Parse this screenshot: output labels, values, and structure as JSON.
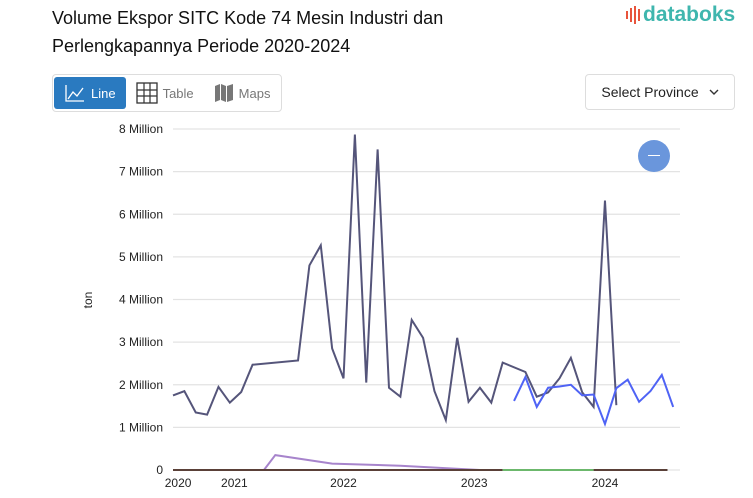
{
  "title": "Volume Ekspor SITC Kode 74 Mesin Industri dan Perlengkapannya Periode 2020-2024",
  "logo": "databoks",
  "tabs": [
    {
      "label": "Line",
      "icon": "line-chart-icon",
      "active": true
    },
    {
      "label": "Table",
      "icon": "table-icon",
      "active": false
    },
    {
      "label": "Maps",
      "icon": "map-icon",
      "active": false
    }
  ],
  "province_select": {
    "label": "Select Province",
    "icon": "chevron-down-icon"
  },
  "zoom_button": {
    "icon": "minus-icon",
    "color": "#6a96dc"
  },
  "chart_data": {
    "type": "line",
    "ylabel": "ton",
    "ylim": [
      0,
      8000000
    ],
    "yticks": [
      {
        "v": 0,
        "label": "0"
      },
      {
        "v": 1000000,
        "label": "1 Million"
      },
      {
        "v": 2000000,
        "label": "2 Million"
      },
      {
        "v": 3000000,
        "label": "3 Million"
      },
      {
        "v": 4000000,
        "label": "4 Million"
      },
      {
        "v": 5000000,
        "label": "5 Million"
      },
      {
        "v": 6000000,
        "label": "6 Million"
      },
      {
        "v": 7000000,
        "label": "7 Million"
      },
      {
        "v": 8000000,
        "label": "8 Million"
      }
    ],
    "xlim": [
      0,
      44.6
    ],
    "xticks": [
      {
        "v": 0.45,
        "label": "2020"
      },
      {
        "v": 5.4,
        "label": "2021"
      },
      {
        "v": 15,
        "label": "2022"
      },
      {
        "v": 26.5,
        "label": "2023"
      },
      {
        "v": 38,
        "label": "2024"
      }
    ],
    "grid": true,
    "series": [
      {
        "color": "#55557a",
        "points": [
          [
            0,
            1750000
          ],
          [
            1,
            1850000
          ],
          [
            2,
            1350000
          ],
          [
            3,
            1300000
          ],
          [
            4,
            1950000
          ],
          [
            5,
            1580000
          ],
          [
            6,
            1830000
          ],
          [
            7,
            2470000
          ],
          [
            11,
            2570000
          ],
          [
            12,
            4800000
          ],
          [
            13,
            5270000
          ],
          [
            14,
            2850000
          ],
          [
            15,
            2150000
          ],
          [
            16,
            7870000
          ],
          [
            17,
            2050000
          ],
          [
            18,
            7520000
          ],
          [
            19,
            1930000
          ],
          [
            20,
            1720000
          ],
          [
            21,
            3520000
          ],
          [
            22,
            3100000
          ],
          [
            23,
            1850000
          ],
          [
            24,
            1170000
          ],
          [
            25,
            3100000
          ],
          [
            26,
            1600000
          ],
          [
            27,
            1930000
          ],
          [
            28,
            1580000
          ],
          [
            29,
            2520000
          ],
          [
            31,
            2300000
          ],
          [
            32,
            1720000
          ],
          [
            33,
            1820000
          ],
          [
            34,
            2150000
          ],
          [
            35,
            2630000
          ],
          [
            36,
            1820000
          ],
          [
            37,
            1480000
          ],
          [
            38,
            6320000
          ],
          [
            39,
            1520000
          ]
        ]
      },
      {
        "color": "#4f63f5",
        "points": [
          [
            30,
            1620000
          ],
          [
            31,
            2180000
          ],
          [
            32,
            1480000
          ],
          [
            33,
            1930000
          ],
          [
            34,
            1960000
          ],
          [
            35,
            2000000
          ],
          [
            36,
            1750000
          ],
          [
            37,
            1770000
          ],
          [
            38,
            1080000
          ],
          [
            39,
            1920000
          ],
          [
            40,
            2120000
          ],
          [
            41,
            1600000
          ],
          [
            42,
            1850000
          ],
          [
            43,
            2230000
          ],
          [
            44,
            1480000
          ]
        ]
      },
      {
        "color": "#a784cc",
        "points": [
          [
            8,
            0
          ],
          [
            9,
            350000
          ],
          [
            14,
            150000
          ],
          [
            20,
            100000
          ],
          [
            27,
            0
          ]
        ]
      },
      {
        "color": "#5a4038",
        "points": [
          [
            0,
            0
          ],
          [
            29,
            0
          ]
        ]
      },
      {
        "color": "#6cb86c",
        "points": [
          [
            29,
            0
          ],
          [
            37,
            0
          ]
        ]
      },
      {
        "color": "#5a4038",
        "points": [
          [
            37,
            0
          ],
          [
            43.5,
            0
          ]
        ]
      }
    ]
  }
}
